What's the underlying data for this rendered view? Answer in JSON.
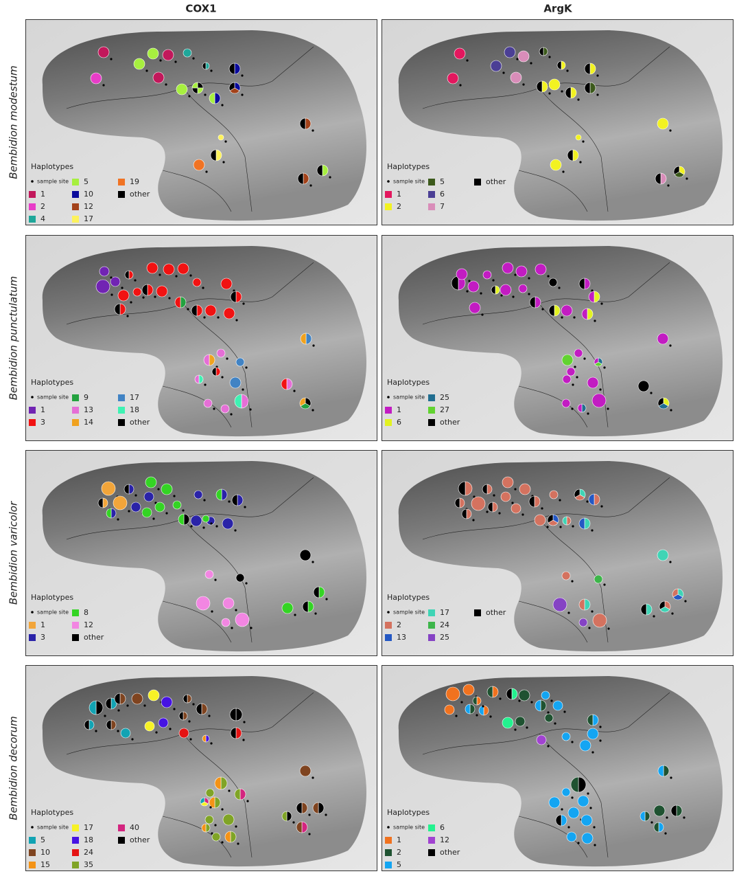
{
  "column_titles": [
    "COX1",
    "ArgK"
  ],
  "rows": [
    {
      "species": "Bembidion modestum",
      "panels": [
        {
          "title": "Haplotypes",
          "site_label": "sample site",
          "columns": [
            [
              {
                "label": "1",
                "color": "#c2185b"
              },
              {
                "label": "2",
                "color": "#e83dc8"
              },
              {
                "label": "4",
                "color": "#1fa79a"
              }
            ],
            [
              {
                "label": "5",
                "color": "#a7ef3f"
              },
              {
                "label": "10",
                "color": "#0b0b9c"
              },
              {
                "label": "12",
                "color": "#a3421a"
              },
              {
                "label": "17",
                "color": "#fdf25c"
              }
            ],
            [
              {
                "label": "19",
                "color": "#f07324"
              },
              {
                "label": "other",
                "color": "#000000"
              }
            ]
          ]
        },
        {
          "title": "Haplotypes",
          "site_label": "sample site",
          "columns": [
            [
              {
                "label": "1",
                "color": "#e3175e"
              },
              {
                "label": "2",
                "color": "#f2f221"
              }
            ],
            [
              {
                "label": "5",
                "color": "#3c5a1b"
              },
              {
                "label": "6",
                "color": "#4b3f95"
              },
              {
                "label": "7",
                "color": "#d98db9"
              }
            ],
            [
              {
                "label": "other",
                "color": "#000000"
              }
            ]
          ]
        }
      ]
    },
    {
      "species": "Bembidion punctulatum",
      "panels": [
        {
          "title": "Haplotypes",
          "site_label": "sample site",
          "columns": [
            [
              {
                "label": "1",
                "color": "#7124b3"
              },
              {
                "label": "3",
                "color": "#f11212"
              }
            ],
            [
              {
                "label": "9",
                "color": "#23a23f"
              },
              {
                "label": "13",
                "color": "#e56fd6"
              },
              {
                "label": "14",
                "color": "#f0a21f"
              }
            ],
            [
              {
                "label": "17",
                "color": "#4183c4"
              },
              {
                "label": "18",
                "color": "#3ff2b3"
              },
              {
                "label": "other",
                "color": "#000000"
              }
            ]
          ]
        },
        {
          "title": "Haplotypes",
          "site_label": "sample site",
          "columns": [
            [
              {
                "label": "1",
                "color": "#c21cc2"
              },
              {
                "label": "6",
                "color": "#e2f221"
              }
            ],
            [
              {
                "label": "25",
                "color": "#216e90"
              },
              {
                "label": "27",
                "color": "#62d331"
              },
              {
                "label": "other",
                "color": "#000000"
              }
            ]
          ]
        }
      ]
    },
    {
      "species": "Bembidion varicolor",
      "panels": [
        {
          "title": "Haplotypes",
          "site_label": "sample site",
          "columns": [
            [
              {
                "label": "1",
                "color": "#f2a53a"
              },
              {
                "label": "3",
                "color": "#2a23a8"
              }
            ],
            [
              {
                "label": "8",
                "color": "#34d424"
              },
              {
                "label": "12",
                "color": "#f286e2"
              },
              {
                "label": "other",
                "color": "#000000"
              }
            ]
          ]
        },
        {
          "title": "Haplotypes",
          "site_label": "sample site",
          "columns": [
            [
              {
                "label": "2",
                "color": "#d4725f"
              },
              {
                "label": "13",
                "color": "#2458c4"
              }
            ],
            [
              {
                "label": "17",
                "color": "#3fd4b5"
              },
              {
                "label": "24",
                "color": "#3db54a"
              },
              {
                "label": "25",
                "color": "#8543c4"
              }
            ],
            [
              {
                "label": "other",
                "color": "#000000"
              }
            ]
          ]
        }
      ]
    },
    {
      "species": "Bembidion decorum",
      "panels": [
        {
          "title": "Haplotypes",
          "site_label": "sample site",
          "columns": [
            [
              {
                "label": "5",
                "color": "#12a3b3"
              },
              {
                "label": "10",
                "color": "#7f4420"
              },
              {
                "label": "15",
                "color": "#f49316"
              }
            ],
            [
              {
                "label": "17",
                "color": "#f7f226"
              },
              {
                "label": "18",
                "color": "#4613e3"
              },
              {
                "label": "24",
                "color": "#e51313"
              },
              {
                "label": "35",
                "color": "#80a426"
              }
            ],
            [
              {
                "label": "40",
                "color": "#d3257f"
              },
              {
                "label": "other",
                "color": "#000000"
              }
            ]
          ]
        },
        {
          "title": "Haplotypes",
          "site_label": "sample site",
          "columns": [
            [
              {
                "label": "1",
                "color": "#f0721f"
              },
              {
                "label": "2",
                "color": "#1f5231"
              },
              {
                "label": "5",
                "color": "#14a5f2"
              }
            ],
            [
              {
                "label": "6",
                "color": "#23f28f"
              },
              {
                "label": "12",
                "color": "#a143d1"
              },
              {
                "label": "other",
                "color": "#000000"
              }
            ]
          ]
        }
      ]
    }
  ]
}
